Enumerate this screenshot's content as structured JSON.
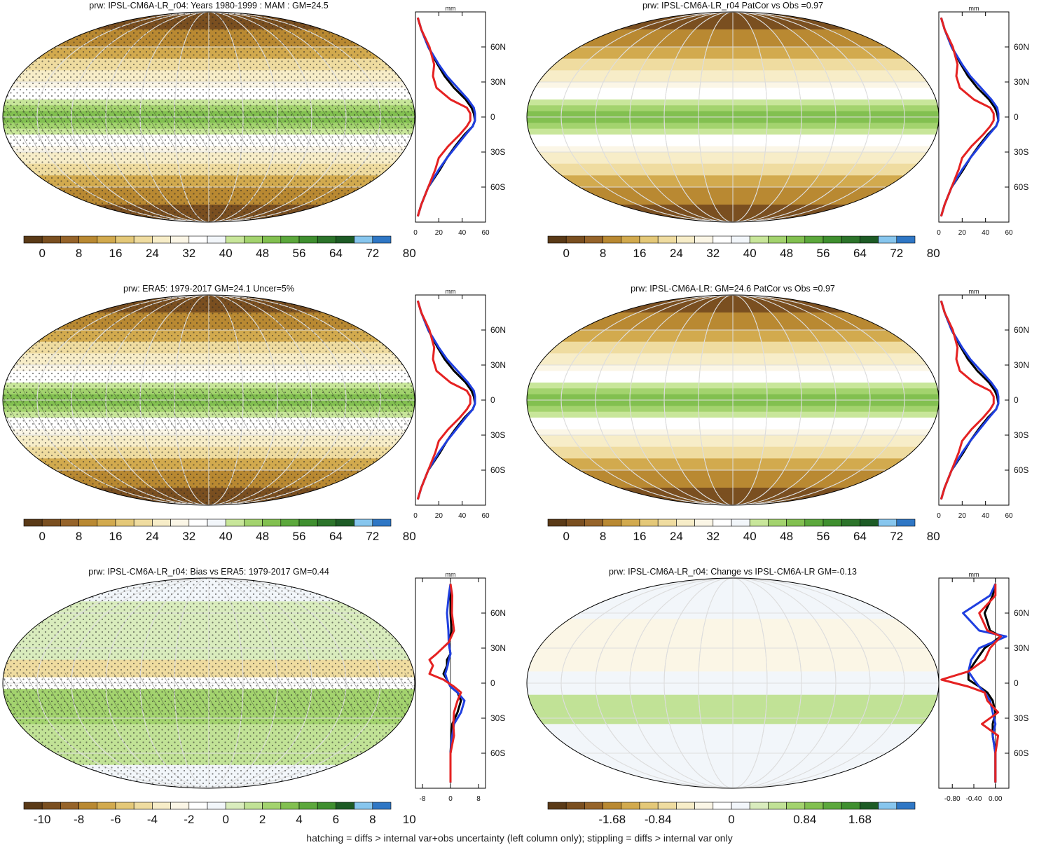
{
  "footnote": "hatching = diffs > internal var+obs uncertainty (left column only); stippling = diffs > internal var only",
  "palettes": {
    "abs": [
      "#5a3a17",
      "#7a4f20",
      "#96642a",
      "#b98932",
      "#d2aa4e",
      "#e4c878",
      "#efdca0",
      "#f7edc8",
      "#fbf6e6",
      "#ffffff",
      "#f2f6fa",
      "#c8e69a",
      "#a3d36e",
      "#82c050",
      "#5ca83c",
      "#3f8f2f",
      "#2c742a",
      "#1d5b25",
      "#87c6ee",
      "#2f77c5"
    ],
    "diff": [
      "#5a3a17",
      "#7a4f20",
      "#96642a",
      "#b98932",
      "#d2aa4e",
      "#e4c878",
      "#efdca0",
      "#f7edc8",
      "#fbf6e6",
      "#ffffff",
      "#f2f6fa",
      "#d9ecbd",
      "#c1e296",
      "#a3d36e",
      "#82c050",
      "#5ca83c",
      "#3f8f2f",
      "#1d5b25",
      "#87c6ee",
      "#2f77c5"
    ]
  },
  "chart_data": [
    {
      "type": "heatmap",
      "title": "prw: IPSL-CM6A-LR_r04: Years 1980-1999 : MAM : GM=24.5",
      "colorbar": {
        "palette": "abs",
        "labels": [
          "0",
          "8",
          "16",
          "24",
          "32",
          "40",
          "48",
          "56",
          "64",
          "72",
          "80"
        ]
      },
      "profile": {
        "unit": "mm",
        "xlim": [
          0,
          60
        ],
        "xticks": [
          "0",
          "20",
          "40",
          "60"
        ],
        "yticks": [
          "60N",
          "30N",
          "0",
          "30S",
          "60S"
        ],
        "lat": [
          85,
          75,
          60,
          45,
          35,
          25,
          15,
          8,
          3,
          -3,
          -8,
          -15,
          -25,
          -35,
          -45,
          -60,
          -75,
          -85
        ],
        "series": [
          {
            "color": "#000000",
            "values": [
              2,
              5,
              11,
              19,
              25,
              33,
              43,
              48,
              50,
              51,
              49,
              42,
              34,
              27,
              21,
              11,
              5,
              2
            ]
          },
          {
            "color": "#1f3fe0",
            "values": [
              2,
              5,
              11,
              20,
              27,
              36,
              45,
              50,
              51,
              51,
              49,
              43,
              35,
              27,
              20,
              11,
              5,
              2
            ]
          },
          {
            "color": "#e52222",
            "values": [
              2,
              5,
              12,
              16,
              15,
              18,
              30,
              44,
              47,
              47,
              44,
              38,
              28,
              20,
              17,
              11,
              5,
              2
            ]
          }
        ]
      },
      "hatched": true
    },
    {
      "type": "heatmap",
      "title": "prw: IPSL-CM6A-LR_r04 PatCor vs Obs =0.97",
      "colorbar": {
        "palette": "abs",
        "labels": [
          "0",
          "8",
          "16",
          "24",
          "32",
          "40",
          "48",
          "56",
          "64",
          "72",
          "80"
        ]
      },
      "profile": {
        "unit": "mm",
        "xlim": [
          0,
          60
        ],
        "xticks": [
          "0",
          "20",
          "40",
          "60"
        ],
        "yticks": [
          "60N",
          "30N",
          "0",
          "30S",
          "60S"
        ],
        "lat": [
          85,
          75,
          60,
          45,
          35,
          25,
          15,
          8,
          3,
          -3,
          -8,
          -15,
          -25,
          -35,
          -45,
          -60,
          -75,
          -85
        ],
        "series": [
          {
            "color": "#000000",
            "values": [
              2,
              5,
              11,
              19,
              25,
              33,
              43,
              48,
              50,
              51,
              49,
              42,
              34,
              27,
              21,
              11,
              5,
              2
            ]
          },
          {
            "color": "#1f3fe0",
            "values": [
              2,
              5,
              11,
              20,
              27,
              36,
              45,
              50,
              51,
              51,
              49,
              43,
              35,
              27,
              20,
              11,
              5,
              2
            ]
          },
          {
            "color": "#e52222",
            "values": [
              2,
              5,
              12,
              16,
              15,
              18,
              30,
              44,
              47,
              47,
              44,
              38,
              28,
              20,
              17,
              11,
              5,
              2
            ]
          }
        ]
      },
      "hatched": false
    },
    {
      "type": "heatmap",
      "title": "prw: ERA5: 1979-2017 GM=24.1 Uncer=5%",
      "colorbar": {
        "palette": "abs",
        "labels": [
          "0",
          "8",
          "16",
          "24",
          "32",
          "40",
          "48",
          "56",
          "64",
          "72",
          "80"
        ]
      },
      "profile": {
        "unit": "mm",
        "xlim": [
          0,
          60
        ],
        "xticks": [
          "0",
          "20",
          "40",
          "60"
        ],
        "yticks": [
          "60N",
          "30N",
          "0",
          "30S",
          "60S"
        ],
        "lat": [
          85,
          75,
          60,
          45,
          35,
          25,
          15,
          8,
          3,
          -3,
          -8,
          -15,
          -25,
          -35,
          -45,
          -60,
          -75,
          -85
        ],
        "series": [
          {
            "color": "#000000",
            "values": [
              2,
              5,
              11,
              19,
              25,
              33,
              43,
              48,
              50,
              51,
              49,
              42,
              34,
              27,
              21,
              11,
              5,
              2
            ]
          },
          {
            "color": "#1f3fe0",
            "values": [
              2,
              5,
              11,
              20,
              27,
              36,
              45,
              50,
              51,
              51,
              49,
              43,
              35,
              27,
              20,
              11,
              5,
              2
            ]
          },
          {
            "color": "#e52222",
            "values": [
              2,
              5,
              12,
              16,
              15,
              18,
              30,
              44,
              47,
              47,
              44,
              38,
              28,
              20,
              17,
              11,
              5,
              2
            ]
          }
        ]
      },
      "hatched": true
    },
    {
      "type": "heatmap",
      "title": "prw: IPSL-CM6A-LR: GM=24.6 PatCor vs Obs =0.97",
      "colorbar": {
        "palette": "abs",
        "labels": [
          "0",
          "8",
          "16",
          "24",
          "32",
          "40",
          "48",
          "56",
          "64",
          "72",
          "80"
        ]
      },
      "profile": {
        "unit": "mm",
        "xlim": [
          0,
          60
        ],
        "xticks": [
          "0",
          "20",
          "40",
          "60"
        ],
        "yticks": [
          "60N",
          "30N",
          "0",
          "30S",
          "60S"
        ],
        "lat": [
          85,
          75,
          60,
          45,
          35,
          25,
          15,
          8,
          3,
          -3,
          -8,
          -15,
          -25,
          -35,
          -45,
          -60,
          -75,
          -85
        ],
        "series": [
          {
            "color": "#000000",
            "values": [
              2,
              5,
              11,
              19,
              25,
              33,
              43,
              48,
              50,
              51,
              49,
              42,
              34,
              27,
              21,
              11,
              5,
              2
            ]
          },
          {
            "color": "#1f3fe0",
            "values": [
              2,
              5,
              11,
              20,
              27,
              36,
              45,
              50,
              51,
              51,
              49,
              43,
              35,
              27,
              20,
              11,
              5,
              2
            ]
          },
          {
            "color": "#e52222",
            "values": [
              2,
              5,
              12,
              16,
              15,
              18,
              30,
              44,
              47,
              47,
              44,
              38,
              28,
              20,
              17,
              11,
              5,
              2
            ]
          }
        ]
      },
      "hatched": false
    },
    {
      "type": "heatmap",
      "title": "prw: IPSL-CM6A-LR_r04: Bias vs ERA5: 1979-2017 GM=0.44",
      "colorbar": {
        "palette": "diff",
        "labels": [
          "-10",
          "-8",
          "-6",
          "-4",
          "-2",
          "0",
          "2",
          "4",
          "6",
          "8",
          "10"
        ]
      },
      "profile": {
        "unit": "mm",
        "xlim": [
          -10,
          10
        ],
        "xticks": [
          "-8",
          "0",
          "8"
        ],
        "yticks": [
          "60N",
          "30N",
          "0",
          "30S",
          "60S"
        ],
        "lat": [
          85,
          75,
          60,
          45,
          35,
          25,
          20,
          15,
          8,
          3,
          -3,
          -8,
          -15,
          -25,
          -35,
          -45,
          -60,
          -75,
          -85
        ],
        "series": [
          {
            "color": "#000000",
            "values": [
              0,
              0,
              0,
              0.3,
              -0.5,
              0,
              -1,
              -1,
              -2,
              -1,
              0,
              2,
              3,
              2,
              0.5,
              0.3,
              0,
              0,
              0
            ]
          },
          {
            "color": "#1f3fe0",
            "values": [
              0,
              -0.5,
              -1,
              -0.6,
              -0.5,
              0,
              -0.5,
              -0.8,
              -1.5,
              -1,
              0,
              2,
              4,
              3,
              1,
              0.5,
              0,
              0,
              0
            ]
          },
          {
            "color": "#e52222",
            "values": [
              0,
              0.5,
              0.4,
              1,
              -0.5,
              -4,
              -6,
              -5,
              -6,
              -2,
              1,
              3,
              2,
              1,
              0.8,
              1,
              0,
              0,
              0
            ]
          }
        ]
      },
      "hatched": true
    },
    {
      "type": "heatmap",
      "title": "prw: IPSL-CM6A-LR_r04: Change vs IPSL-CM6A-LR GM=-0.13",
      "colorbar": {
        "palette": "diff",
        "labels": [
          "-1.68",
          "-0.84",
          "0",
          "0.84",
          "1.68"
        ]
      },
      "profile": {
        "unit": "mm",
        "xlim": [
          -1.05,
          0.25
        ],
        "xticks": [
          "-0.80",
          "-0.40",
          "0.00"
        ],
        "yticks": [
          "60N",
          "30N",
          "0",
          "30S",
          "60S"
        ],
        "lat": [
          85,
          75,
          60,
          45,
          40,
          30,
          20,
          10,
          3,
          -3,
          -8,
          -15,
          -25,
          -35,
          -45,
          -60,
          -75,
          -85
        ],
        "series": [
          {
            "color": "#000000",
            "values": [
              0,
              -0.05,
              -0.2,
              -0.1,
              0.1,
              -0.2,
              -0.35,
              -0.5,
              -0.5,
              -0.3,
              -0.15,
              -0.05,
              0,
              -0.05,
              -0.05,
              0,
              0,
              0
            ]
          },
          {
            "color": "#1f3fe0",
            "values": [
              0,
              -0.1,
              -0.6,
              -0.3,
              0.2,
              -0.3,
              -0.45,
              -0.5,
              -0.4,
              -0.3,
              -0.2,
              -0.1,
              -0.05,
              0,
              -0.05,
              0,
              0,
              0
            ]
          },
          {
            "color": "#e52222",
            "values": [
              0,
              0,
              -0.3,
              -0.15,
              0.1,
              -0.1,
              -0.2,
              -0.5,
              -1,
              -0.5,
              -0.2,
              -0.15,
              0.05,
              -0.25,
              0.05,
              0,
              0,
              0
            ]
          }
        ]
      },
      "hatched": false
    }
  ]
}
